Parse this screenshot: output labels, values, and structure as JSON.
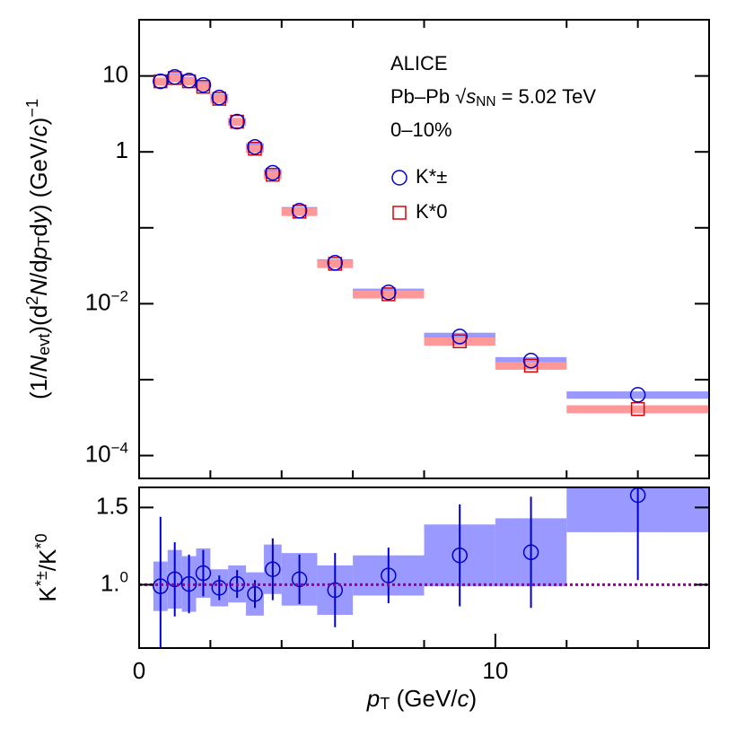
{
  "chart_data": [
    {
      "type": "scatter",
      "log_y": true,
      "ylabel_parts": [
        {
          "t": "(1/"
        },
        {
          "t": "N",
          "s": "it"
        },
        {
          "t": "evt",
          "s": "sub"
        },
        {
          "t": ")(d"
        },
        {
          "t": "2",
          "s": "sup"
        },
        {
          "t": "N",
          "s": "it"
        },
        {
          "t": "/d"
        },
        {
          "t": "p",
          "s": "it"
        },
        {
          "t": "T",
          "s": "sub"
        },
        {
          "t": "d"
        },
        {
          "t": "y",
          "s": "it"
        },
        {
          "t": ") (GeV/"
        },
        {
          "t": "c",
          "s": "it"
        },
        {
          "t": ")"
        },
        {
          "t": "−1",
          "s": "sup"
        }
      ],
      "annotations": [
        [
          {
            "t": "ALICE"
          }
        ],
        [
          {
            "t": "Pb–Pb √"
          },
          {
            "t": "s",
            "s": "it"
          },
          {
            "t": "NN",
            "s": "sub"
          },
          {
            "t": " = 5.02 TeV"
          }
        ],
        [
          {
            "t": "0–10%"
          }
        ]
      ],
      "bins": [
        0.4,
        0.8,
        1.2,
        1.6,
        2.0,
        2.5,
        3.0,
        3.5,
        4.0,
        5.0,
        6.0,
        8.0,
        10.0,
        12.0,
        16.0
      ],
      "x": [
        0.6,
        1.0,
        1.4,
        1.8,
        2.25,
        2.75,
        3.25,
        3.75,
        4.5,
        5.5,
        7.0,
        9.0,
        11.0,
        14.0
      ],
      "series": [
        {
          "name": "K*±",
          "marker": "circle",
          "color": "#0000cc",
          "box_color": "#9999ff",
          "values": [
            8.5,
            9.7,
            8.7,
            7.6,
            5.2,
            2.5,
            1.16,
            0.53,
            0.168,
            0.0346,
            0.0141,
            0.0037,
            0.00178,
            0.00063
          ],
          "sys": [
            1.0,
            1.2,
            1.0,
            0.9,
            0.6,
            0.3,
            0.14,
            0.06,
            0.02,
            0.004,
            0.0017,
            0.00045,
            0.0002,
            7e-05
          ]
        },
        {
          "name": "K*0",
          "marker": "square",
          "color": "#dd0000",
          "box_color": "#ff9999",
          "values": [
            8.5,
            9.4,
            8.5,
            7.2,
            5.0,
            2.5,
            1.1,
            0.5,
            0.163,
            0.0335,
            0.0133,
            0.0032,
            0.00153,
            0.00041
          ],
          "sys": [
            1.0,
            1.1,
            1.0,
            0.9,
            0.6,
            0.3,
            0.13,
            0.06,
            0.02,
            0.004,
            0.0016,
            0.0004,
            0.00018,
            5e-05
          ]
        }
      ],
      "xlim": [
        0,
        16
      ],
      "ylim": [
        5e-05,
        55
      ],
      "yticks": [
        {
          "value": 0.0001,
          "label": "10−4"
        },
        {
          "value": 0.01,
          "label": "10−2"
        },
        1,
        10
      ],
      "yminorticks": [
        0.001,
        0.1
      ],
      "xminorticks": [
        2,
        4,
        6,
        8,
        12,
        14
      ]
    },
    {
      "type": "scatter",
      "ylabel_parts": [
        {
          "t": "K"
        },
        {
          "t": "*±",
          "s": "sup"
        },
        {
          "t": "/K"
        },
        {
          "t": "*0",
          "s": "sup"
        }
      ],
      "xlabel_parts": [
        {
          "t": "p",
          "s": "it"
        },
        {
          "t": "T",
          "s": "sub"
        },
        {
          "t": " (GeV/"
        },
        {
          "t": "c",
          "s": "it"
        },
        {
          "t": ")"
        }
      ],
      "bins": [
        0.4,
        0.8,
        1.2,
        1.6,
        2.0,
        2.5,
        3.0,
        3.5,
        4.0,
        5.0,
        6.0,
        8.0,
        10.0,
        12.0,
        16.0
      ],
      "x": [
        0.6,
        1.0,
        1.4,
        1.8,
        2.25,
        2.75,
        3.25,
        3.75,
        4.5,
        5.5,
        7.0,
        9.0,
        11.0,
        14.0
      ],
      "series": [
        {
          "marker": "circle",
          "color": "#0000cc",
          "box_color": "#9999ff",
          "values": [
            0.99,
            1.035,
            1.005,
            1.075,
            0.98,
            1.005,
            0.94,
            1.1,
            1.035,
            0.965,
            1.06,
            1.19,
            1.21,
            1.58
          ],
          "errors": [
            0.45,
            0.24,
            0.19,
            0.15,
            0.08,
            0.09,
            0.09,
            0.2,
            0.16,
            0.24,
            0.18,
            0.33,
            0.36,
            0.55
          ],
          "sys": [
            0.16,
            0.19,
            0.18,
            0.16,
            0.12,
            0.12,
            0.14,
            0.16,
            0.17,
            0.16,
            0.13,
            0.2,
            0.22,
            0.24
          ]
        }
      ],
      "hline": 1,
      "hline_color": "#990099",
      "xlim": [
        0,
        16
      ],
      "ylim": [
        0.59,
        1.63
      ],
      "xticks": [
        0,
        10
      ],
      "xminorticks": [
        2,
        4,
        6,
        8,
        12,
        14
      ],
      "yticks": [
        {
          "value": 1.0,
          "label": "1.0"
        },
        1.5
      ]
    }
  ]
}
